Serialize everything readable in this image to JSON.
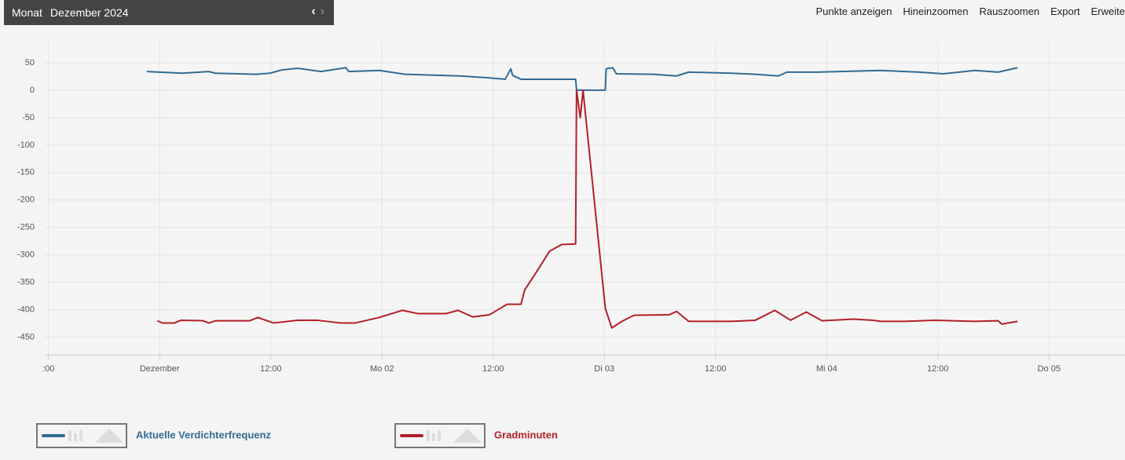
{
  "header": {
    "period_label": "Monat",
    "period": "Dezember 2024"
  },
  "toolbar": [
    "Punkte anzeigen",
    "Hineinzoomen",
    "Rauszoomen",
    "Export",
    "Erweite"
  ],
  "chart_data": {
    "type": "line",
    "xlim": [
      -12.4,
      104.2
    ],
    "ylim": [
      -482,
      90
    ],
    "xticks": [
      {
        "value": -12,
        "label": ":00"
      },
      {
        "value": 0,
        "label": "Dezember"
      },
      {
        "value": 12,
        "label": "12:00"
      },
      {
        "value": 24,
        "label": "Mo 02"
      },
      {
        "value": 36,
        "label": "12:00"
      },
      {
        "value": 48,
        "label": "Di 03"
      },
      {
        "value": 60,
        "label": "12:00"
      },
      {
        "value": 72,
        "label": "Mi 04"
      },
      {
        "value": 84,
        "label": "12:00"
      },
      {
        "value": 96,
        "label": "Do 05"
      }
    ],
    "yticks": [
      50,
      0,
      -50,
      -100,
      -150,
      -200,
      -250,
      -300,
      -350,
      -400,
      -450
    ],
    "grid": true,
    "series": [
      {
        "name": "Aktuelle Verdichterfrequenz",
        "color": "#336b94",
        "x": [
          -1.4,
          2.4,
          5.3,
          6.0,
          10.4,
          11.9,
          13.2,
          14.9,
          17.4,
          20.1,
          20.4,
          23.7,
          26.5,
          32.4,
          35.2,
          37.3,
          37.9,
          38.1,
          39.0,
          44.9,
          45.0,
          48.1,
          48.2,
          48.9,
          49.3,
          53.3,
          55.8,
          57.1,
          61.7,
          64.3,
          66.8,
          67.7,
          71.0,
          77.8,
          82.0,
          84.6,
          88.0,
          90.5,
          92.6
        ],
        "values": [
          34,
          31,
          34,
          31,
          29,
          31,
          37,
          40,
          34,
          41,
          34,
          36,
          29,
          26,
          23,
          20,
          39,
          27,
          20,
          20,
          0,
          0,
          39,
          41,
          30,
          29,
          26,
          33,
          31,
          29,
          26,
          33,
          33,
          36,
          33,
          30,
          36,
          33,
          41
        ]
      },
      {
        "name": "Gradminuten",
        "color": "#b22028",
        "x": [
          -0.25,
          0.3,
          1.6,
          2.3,
          4.7,
          5.3,
          6.0,
          9.7,
          10.6,
          12.3,
          14.9,
          17.0,
          19.5,
          21.1,
          23.7,
          26.2,
          27.9,
          30.9,
          32.2,
          33.8,
          35.6,
          37.5,
          39.0,
          39.4,
          40.6,
          42.1,
          43.4,
          44.9,
          45.0,
          45.4,
          45.7,
          48.1,
          48.8,
          49.9,
          51.2,
          55.0,
          55.8,
          57.1,
          59.2,
          61.7,
          64.3,
          66.4,
          68.1,
          69.8,
          71.5,
          74.9,
          77.0,
          77.8,
          80.4,
          83.7,
          87.9,
          90.5,
          90.9,
          92.6
        ],
        "values": [
          -420,
          -424,
          -424,
          -419,
          -420,
          -424,
          -420,
          -420,
          -414,
          -424,
          -419,
          -419,
          -424,
          -424,
          -414,
          -401,
          -407,
          -407,
          -401,
          -413,
          -409,
          -390,
          -390,
          -364,
          -333,
          -293,
          -281,
          -280,
          0,
          -50,
          0,
          -397,
          -433,
          -421,
          -410,
          -409,
          -403,
          -421,
          -421,
          -421,
          -419,
          -401,
          -419,
          -404,
          -420,
          -417,
          -419,
          -421,
          -421,
          -419,
          -421,
          -420,
          -426,
          -421
        ]
      }
    ]
  }
}
